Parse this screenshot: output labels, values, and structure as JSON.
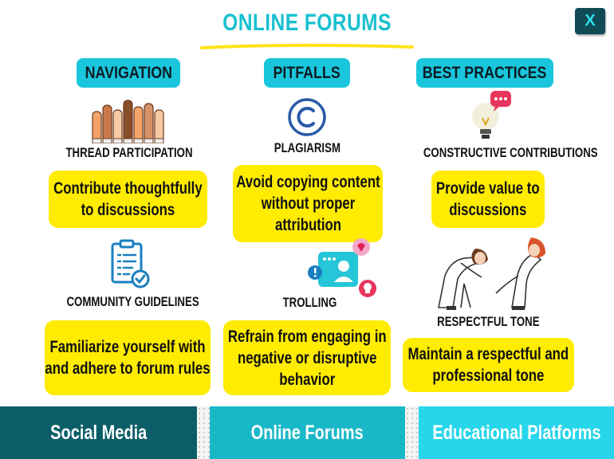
{
  "title": "ONLINE FORUMS",
  "close_label": "X",
  "columns": [
    {
      "header": "NAVIGATION"
    },
    {
      "header": "PITFALLS"
    },
    {
      "header": "BEST PRACTICES"
    }
  ],
  "topics": {
    "thread_participation": {
      "label": "THREAD PARTICIPATION",
      "description": "Contribute thoughtfully to discussions",
      "icon": "raised-hands-icon"
    },
    "community_guidelines": {
      "label": "COMMUNITY GUIDELINES",
      "description": "Familiarize yourself with and adhere to forum rules",
      "icon": "clipboard-checklist-icon"
    },
    "plagiarism": {
      "label": "PLAGIARISM",
      "description": "Avoid copying content without proper attribution",
      "icon": "copyright-icon"
    },
    "trolling": {
      "label": "TROLLING",
      "description": "Refrain from engaging in negative or disruptive behavior",
      "icon": "chat-conflict-icon"
    },
    "constructive_contributions": {
      "label": "CONSTRUCTIVE CONTRIBUTIONS",
      "description": "Provide value to discussions",
      "icon": "lightbulb-chat-icon"
    },
    "respectful_tone": {
      "label": "RESPECTFUL TONE",
      "description": "Maintain a respectful and professional tone",
      "icon": "people-bowing-icon"
    }
  },
  "tabs": [
    {
      "label": "Social Media"
    },
    {
      "label": "Online Forums"
    },
    {
      "label": "Educational Platforms"
    }
  ],
  "colors": {
    "accent": "#19c6dc",
    "card": "#ffec00",
    "tab_dark": "#0b5e68",
    "tab_mid": "#19b8c8",
    "tab_light": "#27d6ea"
  }
}
